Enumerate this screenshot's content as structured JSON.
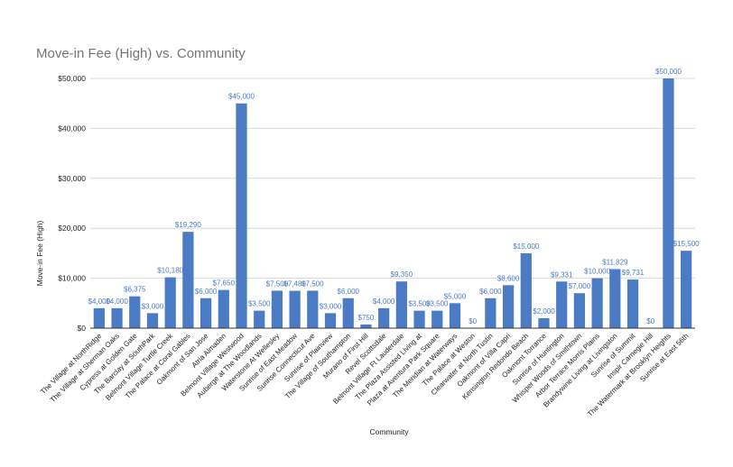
{
  "chart_data": {
    "type": "bar",
    "title": "Move-in Fee (High) vs. Community",
    "xlabel": "Community",
    "ylabel": "Move-in Fee (High)",
    "ylim": [
      0,
      50000
    ],
    "yticks": [
      "$0",
      "$10,000",
      "$20,000",
      "$30,000",
      "$40,000",
      "$50,000"
    ],
    "grid": true,
    "legend": "none",
    "bar_color": "#4a7bc4",
    "categories": [
      "The Village at NorthRidge",
      "The Village at Sherman Oaks",
      "Cypress at Golden Gate",
      "The Barclay at SouthPark",
      "Belmont Village Turtle Creek",
      "The Palace at Coral Gables",
      "Oakmont of San Jose",
      "Atria Almaden",
      "Belmont Village Westwood",
      "Auberge at The Woodlands",
      "Waterstone At Wellesley",
      "Sunrise of East Meadow",
      "Sunrise Connecticut Ave",
      "Sunrise of Plainview",
      "The Village of Southampton",
      "Murano of First Hill",
      "Revel Scottsdale",
      "Belmont Village Ft Lauderdale",
      "The Plaza Assisted Living at",
      "Plaza at Aventura Park Square",
      "The Meridian at Waterways",
      "The Palace at Weston",
      "Clearwater at North Tustin",
      "Oakmont of Villa Capri",
      "Kensington Redondo Beach",
      "Oakmont Torrance",
      "Sunrise of Huntington",
      "Whisper Woods of Smithtown",
      "Arbor Terrace Morris Plains",
      "Brandywine Living at Livingston",
      "Sunrise of Summit",
      "Inspir Carnegie Hill",
      "The Watermark at Brooklyn Heights",
      "Sunrise at East 56th"
    ],
    "values": [
      4000,
      4000,
      6375,
      3000,
      10180,
      19290,
      6000,
      7650,
      45000,
      3500,
      7500,
      7480,
      7500,
      3000,
      6000,
      750,
      4000,
      9350,
      3500,
      3500,
      5000,
      0,
      6000,
      8600,
      15000,
      2000,
      9331,
      7000,
      10000,
      11829,
      9731,
      0,
      50000,
      15500
    ],
    "data_labels": [
      "$4,000",
      "$4,000",
      "$6,375",
      "$3,000",
      "$10,180",
      "$19,290",
      "$6,000",
      "$7,650",
      "$45,000",
      "$3,500",
      "$7,500",
      "$7,480",
      "$7,500",
      "$3,000",
      "$6,000",
      "$750",
      "$4,000",
      "$9,350",
      "$3,500",
      "$3,500",
      "$5,000",
      "$0",
      "$6,000",
      "$8,600",
      "$15,000",
      "$2,000",
      "$9,331",
      "$7,000",
      "$10,000",
      "$11,829",
      "$9,731",
      "$0",
      "$50,000",
      "$15,500"
    ]
  }
}
